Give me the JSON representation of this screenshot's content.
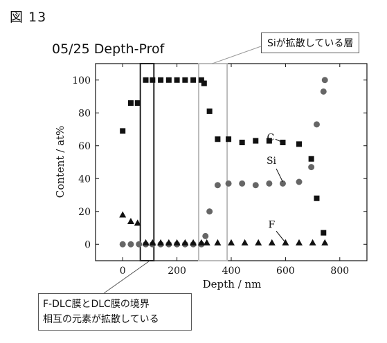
{
  "figure_label": "図 13",
  "callouts": {
    "si_layer": "Siが拡散している層",
    "boundary_line1": "F-DLC膜とDLC膜の境界",
    "boundary_line2": "相互の元素が拡散している"
  },
  "colors": {
    "ink": "#111111",
    "circle": "#666666",
    "gray_box": "#bbbbbb",
    "dark_box": "#222222"
  },
  "chart_data": {
    "type": "scatter",
    "title": "05/25   Depth-Prof",
    "xlabel": "Depth / nm",
    "ylabel": "Content / at%",
    "xlim": [
      -100,
      900
    ],
    "ylim": [
      -10,
      110
    ],
    "xticks": [
      0,
      200,
      400,
      600,
      800
    ],
    "yticks": [
      0,
      20,
      40,
      60,
      80,
      100
    ],
    "grid": false,
    "series": [
      {
        "name": "C",
        "marker": "square",
        "x": [
          0,
          30,
          55,
          85,
          110,
          140,
          170,
          200,
          230,
          260,
          290,
          300,
          320,
          350,
          390,
          440,
          490,
          540,
          590,
          650,
          695,
          715,
          740
        ],
        "y": [
          69,
          86,
          86,
          100,
          100,
          100,
          100,
          100,
          100,
          100,
          100,
          98,
          81,
          64,
          64,
          62,
          63,
          63,
          62,
          61,
          52,
          28,
          7
        ]
      },
      {
        "name": "Si",
        "marker": "circle",
        "x": [
          0,
          30,
          60,
          85,
          110,
          140,
          170,
          200,
          230,
          260,
          290,
          305,
          320,
          350,
          390,
          440,
          490,
          540,
          590,
          650,
          695,
          715,
          740,
          745
        ],
        "y": [
          0,
          0,
          0,
          0,
          0,
          0,
          0,
          0,
          0,
          0,
          0,
          5,
          20,
          36,
          37,
          37,
          36,
          37,
          37,
          38,
          47,
          73,
          93,
          100
        ]
      },
      {
        "name": "F",
        "marker": "triangle",
        "x": [
          0,
          30,
          55,
          85,
          110,
          140,
          170,
          200,
          230,
          260,
          290,
          310,
          350,
          400,
          450,
          500,
          550,
          600,
          650,
          700,
          745
        ],
        "y": [
          18,
          14,
          13,
          1,
          1,
          1,
          1,
          1,
          1,
          1,
          1,
          1,
          1,
          1,
          1,
          1,
          1,
          1,
          1,
          1,
          1
        ]
      }
    ],
    "annotations": [
      {
        "label": "C",
        "series": "C"
      },
      {
        "label": "Si",
        "series": "Si"
      },
      {
        "label": "F",
        "series": "F"
      }
    ],
    "highlight_boxes": [
      {
        "style": "dark",
        "x_from": 65,
        "x_to": 115
      },
      {
        "style": "gray",
        "x_from": 280,
        "x_to": 385
      }
    ]
  }
}
